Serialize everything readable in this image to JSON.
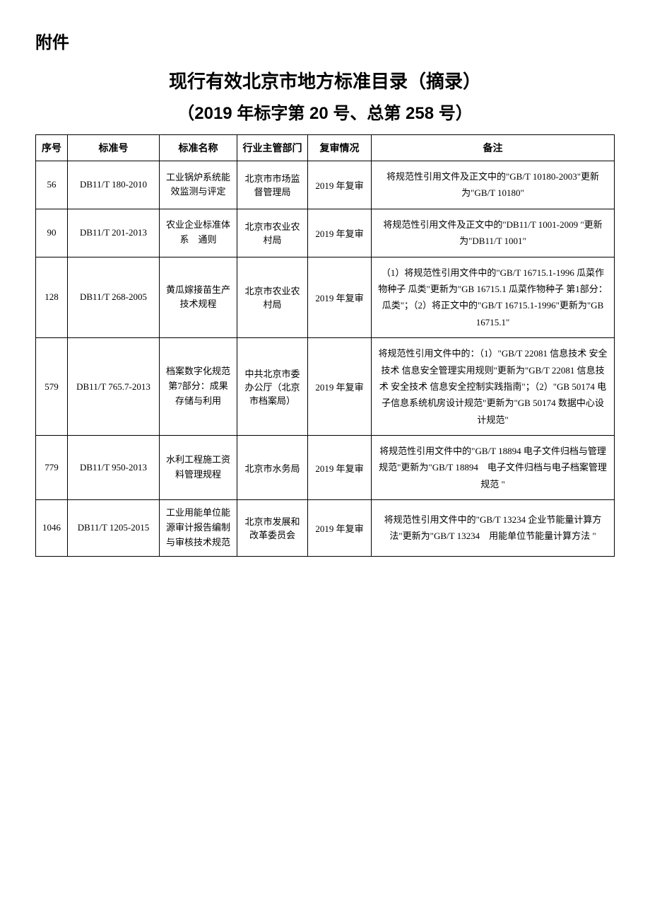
{
  "attachment_label": "附件",
  "title": "现行有效北京市地方标准目录（摘录）",
  "subtitle": "（2019 年标字第 20 号、总第 258 号）",
  "table": {
    "columns": [
      "序号",
      "标准号",
      "标准名称",
      "行业主管部门",
      "复审情况",
      "备注"
    ],
    "rows": [
      {
        "seq": "56",
        "std_no": "DB11/T 180-2010",
        "std_name": "工业锅炉系统能效监测与评定",
        "dept": "北京市市场监督管理局",
        "review": "2019 年复审",
        "remark": "将规范性引用文件及正文中的\"GB/T 10180-2003\"更新为\"GB/T 10180\""
      },
      {
        "seq": "90",
        "std_no": "DB11/T 201-2013",
        "std_name": "农业企业标准体系　通则",
        "dept": "北京市农业农村局",
        "review": "2019 年复审",
        "remark": "将规范性引用文件及正文中的\"DB11/T 1001-2009 \"更新为\"DB11/T 1001\""
      },
      {
        "seq": "128",
        "std_no": "DB11/T 268-2005",
        "std_name": "黄瓜嫁接苗生产技术规程",
        "dept": "北京市农业农村局",
        "review": "2019 年复审",
        "remark": "（1）将规范性引用文件中的\"GB/T 16715.1-1996 瓜菜作物种子 瓜类\"更新为\"GB 16715.1 瓜菜作物种子 第1部分：瓜类\"；（2）将正文中的\"GB/T 16715.1-1996\"更新为\"GB 16715.1\""
      },
      {
        "seq": "579",
        "std_no": "DB11/T 765.7-2013",
        "std_name": "档案数字化规范 第7部分：成果存储与利用",
        "dept": "中共北京市委办公厅（北京市档案局）",
        "review": "2019 年复审",
        "remark": "将规范性引用文件中的：（1）\"GB/T 22081 信息技术 安全技术 信息安全管理实用规则\"更新为\"GB/T 22081 信息技术 安全技术 信息安全控制实践指南\"；（2）\"GB 50174 电子信息系统机房设计规范\"更新为\"GB 50174 数据中心设计规范\""
      },
      {
        "seq": "779",
        "std_no": "DB11/T 950-2013",
        "std_name": "水利工程施工资料管理规程",
        "dept": "北京市水务局",
        "review": "2019 年复审",
        "remark": "将规范性引用文件中的\"GB/T 18894 电子文件归档与管理规范\"更新为\"GB/T 18894　电子文件归档与电子档案管理规范 \""
      },
      {
        "seq": "1046",
        "std_no": "DB11/T 1205-2015",
        "std_name": "工业用能单位能源审计报告编制与审核技术规范",
        "dept": "北京市发展和改革委员会",
        "review": "2019 年复审",
        "remark": "将规范性引用文件中的\"GB/T 13234 企业节能量计算方法\"更新为\"GB/T 13234　用能单位节能量计算方法 \""
      }
    ]
  }
}
